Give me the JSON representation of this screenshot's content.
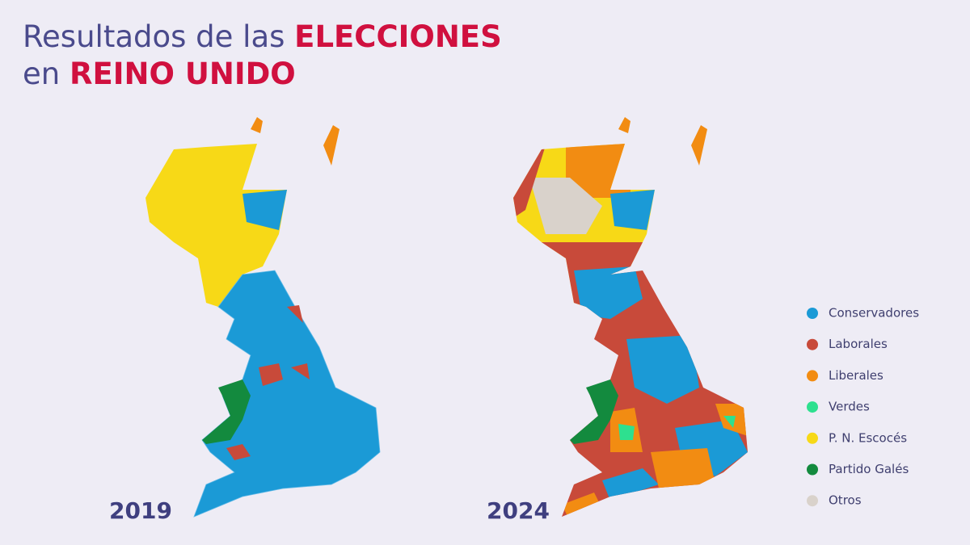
{
  "title": {
    "line1_prefix": "Resultados de las",
    "line1_highlight": "ELECCIONES",
    "line2_prefix": "en",
    "line2_highlight": "REINO UNIDO"
  },
  "maps": [
    {
      "year": "2019"
    },
    {
      "year": "2024"
    }
  ],
  "legend": [
    {
      "name": "Conservadores",
      "color": "#1b9ad6"
    },
    {
      "name": "Laborales",
      "color": "#c84a3a"
    },
    {
      "name": "Liberales",
      "color": "#f28c12"
    },
    {
      "name": "Verdes",
      "color": "#2ee08f"
    },
    {
      "name": "P. N. Escocés",
      "color": "#f7d917"
    },
    {
      "name": "Partido Galés",
      "color": "#138a3e"
    },
    {
      "name": "Otros",
      "color": "#d9d2cb"
    }
  ]
}
